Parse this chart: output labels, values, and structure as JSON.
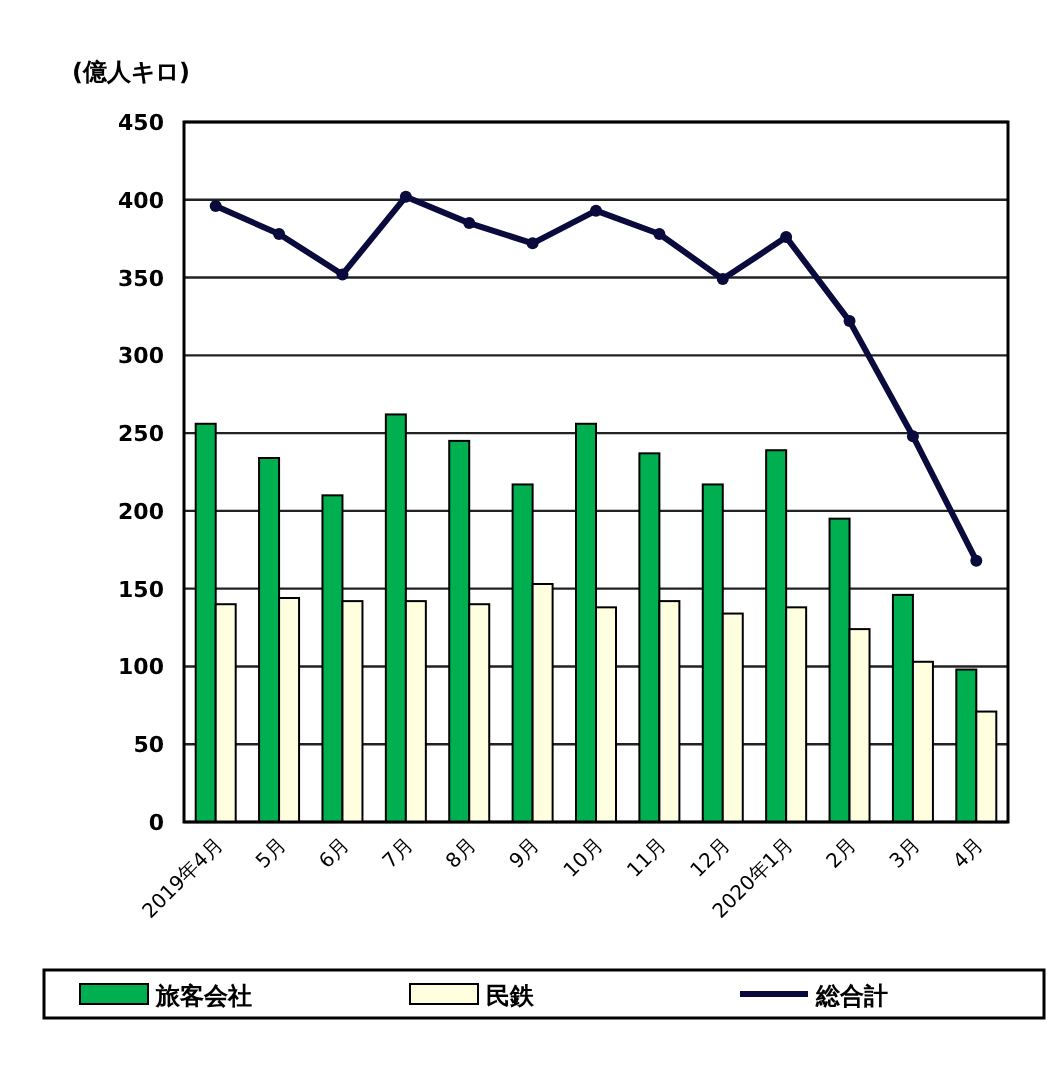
{
  "chart_data": {
    "type": "bar",
    "ylabel": "(億人キロ)",
    "categories": [
      "2019年4月",
      "5月",
      "6月",
      "7月",
      "8月",
      "9月",
      "10月",
      "11月",
      "12月",
      "2020年1月",
      "2月",
      "3月",
      "4月"
    ],
    "series": [
      {
        "name": "旅客会社",
        "color": "#00b050",
        "values": [
          256,
          234,
          210,
          262,
          245,
          217,
          256,
          237,
          217,
          239,
          195,
          146,
          98
        ]
      },
      {
        "name": "民鉄",
        "color": "#ffffe0",
        "values": [
          140,
          144,
          142,
          142,
          140,
          153,
          138,
          142,
          134,
          138,
          124,
          103,
          71
        ]
      },
      {
        "name": "総合計",
        "type": "line",
        "color": "#0a0a3c",
        "marker": "circle",
        "values": [
          396,
          378,
          352,
          402,
          385,
          372,
          393,
          378,
          349,
          376,
          322,
          248,
          168
        ]
      }
    ],
    "ylim": [
      0,
      450
    ],
    "yticks": [
      0,
      50,
      100,
      150,
      200,
      250,
      300,
      350,
      400,
      450
    ],
    "grid": "y",
    "legend": "bottom"
  }
}
